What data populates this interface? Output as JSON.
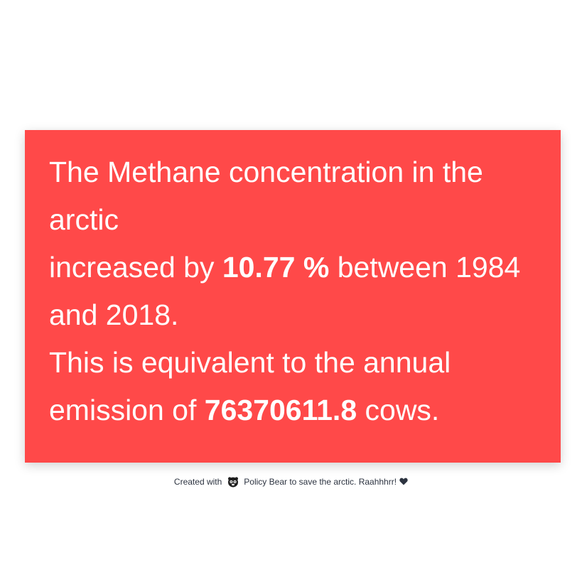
{
  "card": {
    "line1": "The Methane concentration in the arctic",
    "line2_prefix": "increased by ",
    "percent": "10.77 %",
    "line2_suffix": " between 1984 and 2018.",
    "line3_prefix": "This is equivalent to the annual emission of ",
    "cows": "76370611.8",
    "line3_suffix": " cows.",
    "background_color": "#ff4949",
    "text_color": "#ffffff"
  },
  "footer": {
    "created_with": "Created with",
    "logo_icon": "policy-bear-logo-icon",
    "text": "Policy Bear to save the arctic. Raahhhrr!",
    "heart_icon": "heart-icon",
    "text_color": "#2c3340"
  }
}
